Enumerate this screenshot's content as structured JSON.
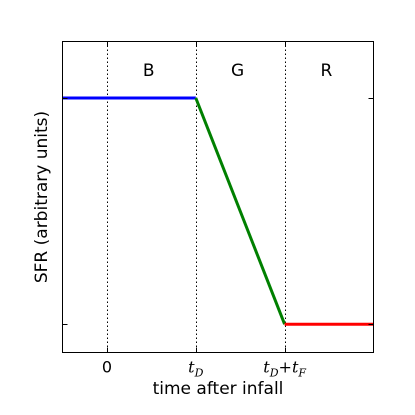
{
  "chart_data": {
    "type": "line",
    "xlabel": "time after infall",
    "ylabel": "SFR (arbitrary units)",
    "xlim": [
      -0.5,
      3.0
    ],
    "ylim": [
      -0.1,
      1.0
    ],
    "x_ticks": [
      {
        "value": 0,
        "label": "0"
      },
      {
        "value": 1,
        "label": "t",
        "sub": "D"
      },
      {
        "value": 2,
        "label": "t",
        "sub": "D",
        "label2": "+t",
        "sub2": "F"
      }
    ],
    "y_tick_values": [
      0.0,
      0.8
    ],
    "vertical_lines": [
      0,
      1,
      2
    ],
    "regions": [
      {
        "label": "B",
        "x": 0.47
      },
      {
        "label": "G",
        "x": 1.47
      },
      {
        "label": "R",
        "x": 2.47
      }
    ],
    "region_label_y": 0.9,
    "series": [
      {
        "color": "#0000ff",
        "points": [
          [
            -0.5,
            0.8
          ],
          [
            1.0,
            0.8
          ]
        ]
      },
      {
        "color": "#008000",
        "points": [
          [
            1.0,
            0.8
          ],
          [
            2.0,
            0.0
          ]
        ]
      },
      {
        "color": "#ff0000",
        "points": [
          [
            2.0,
            0.0
          ],
          [
            3.0,
            0.0
          ]
        ]
      }
    ]
  }
}
